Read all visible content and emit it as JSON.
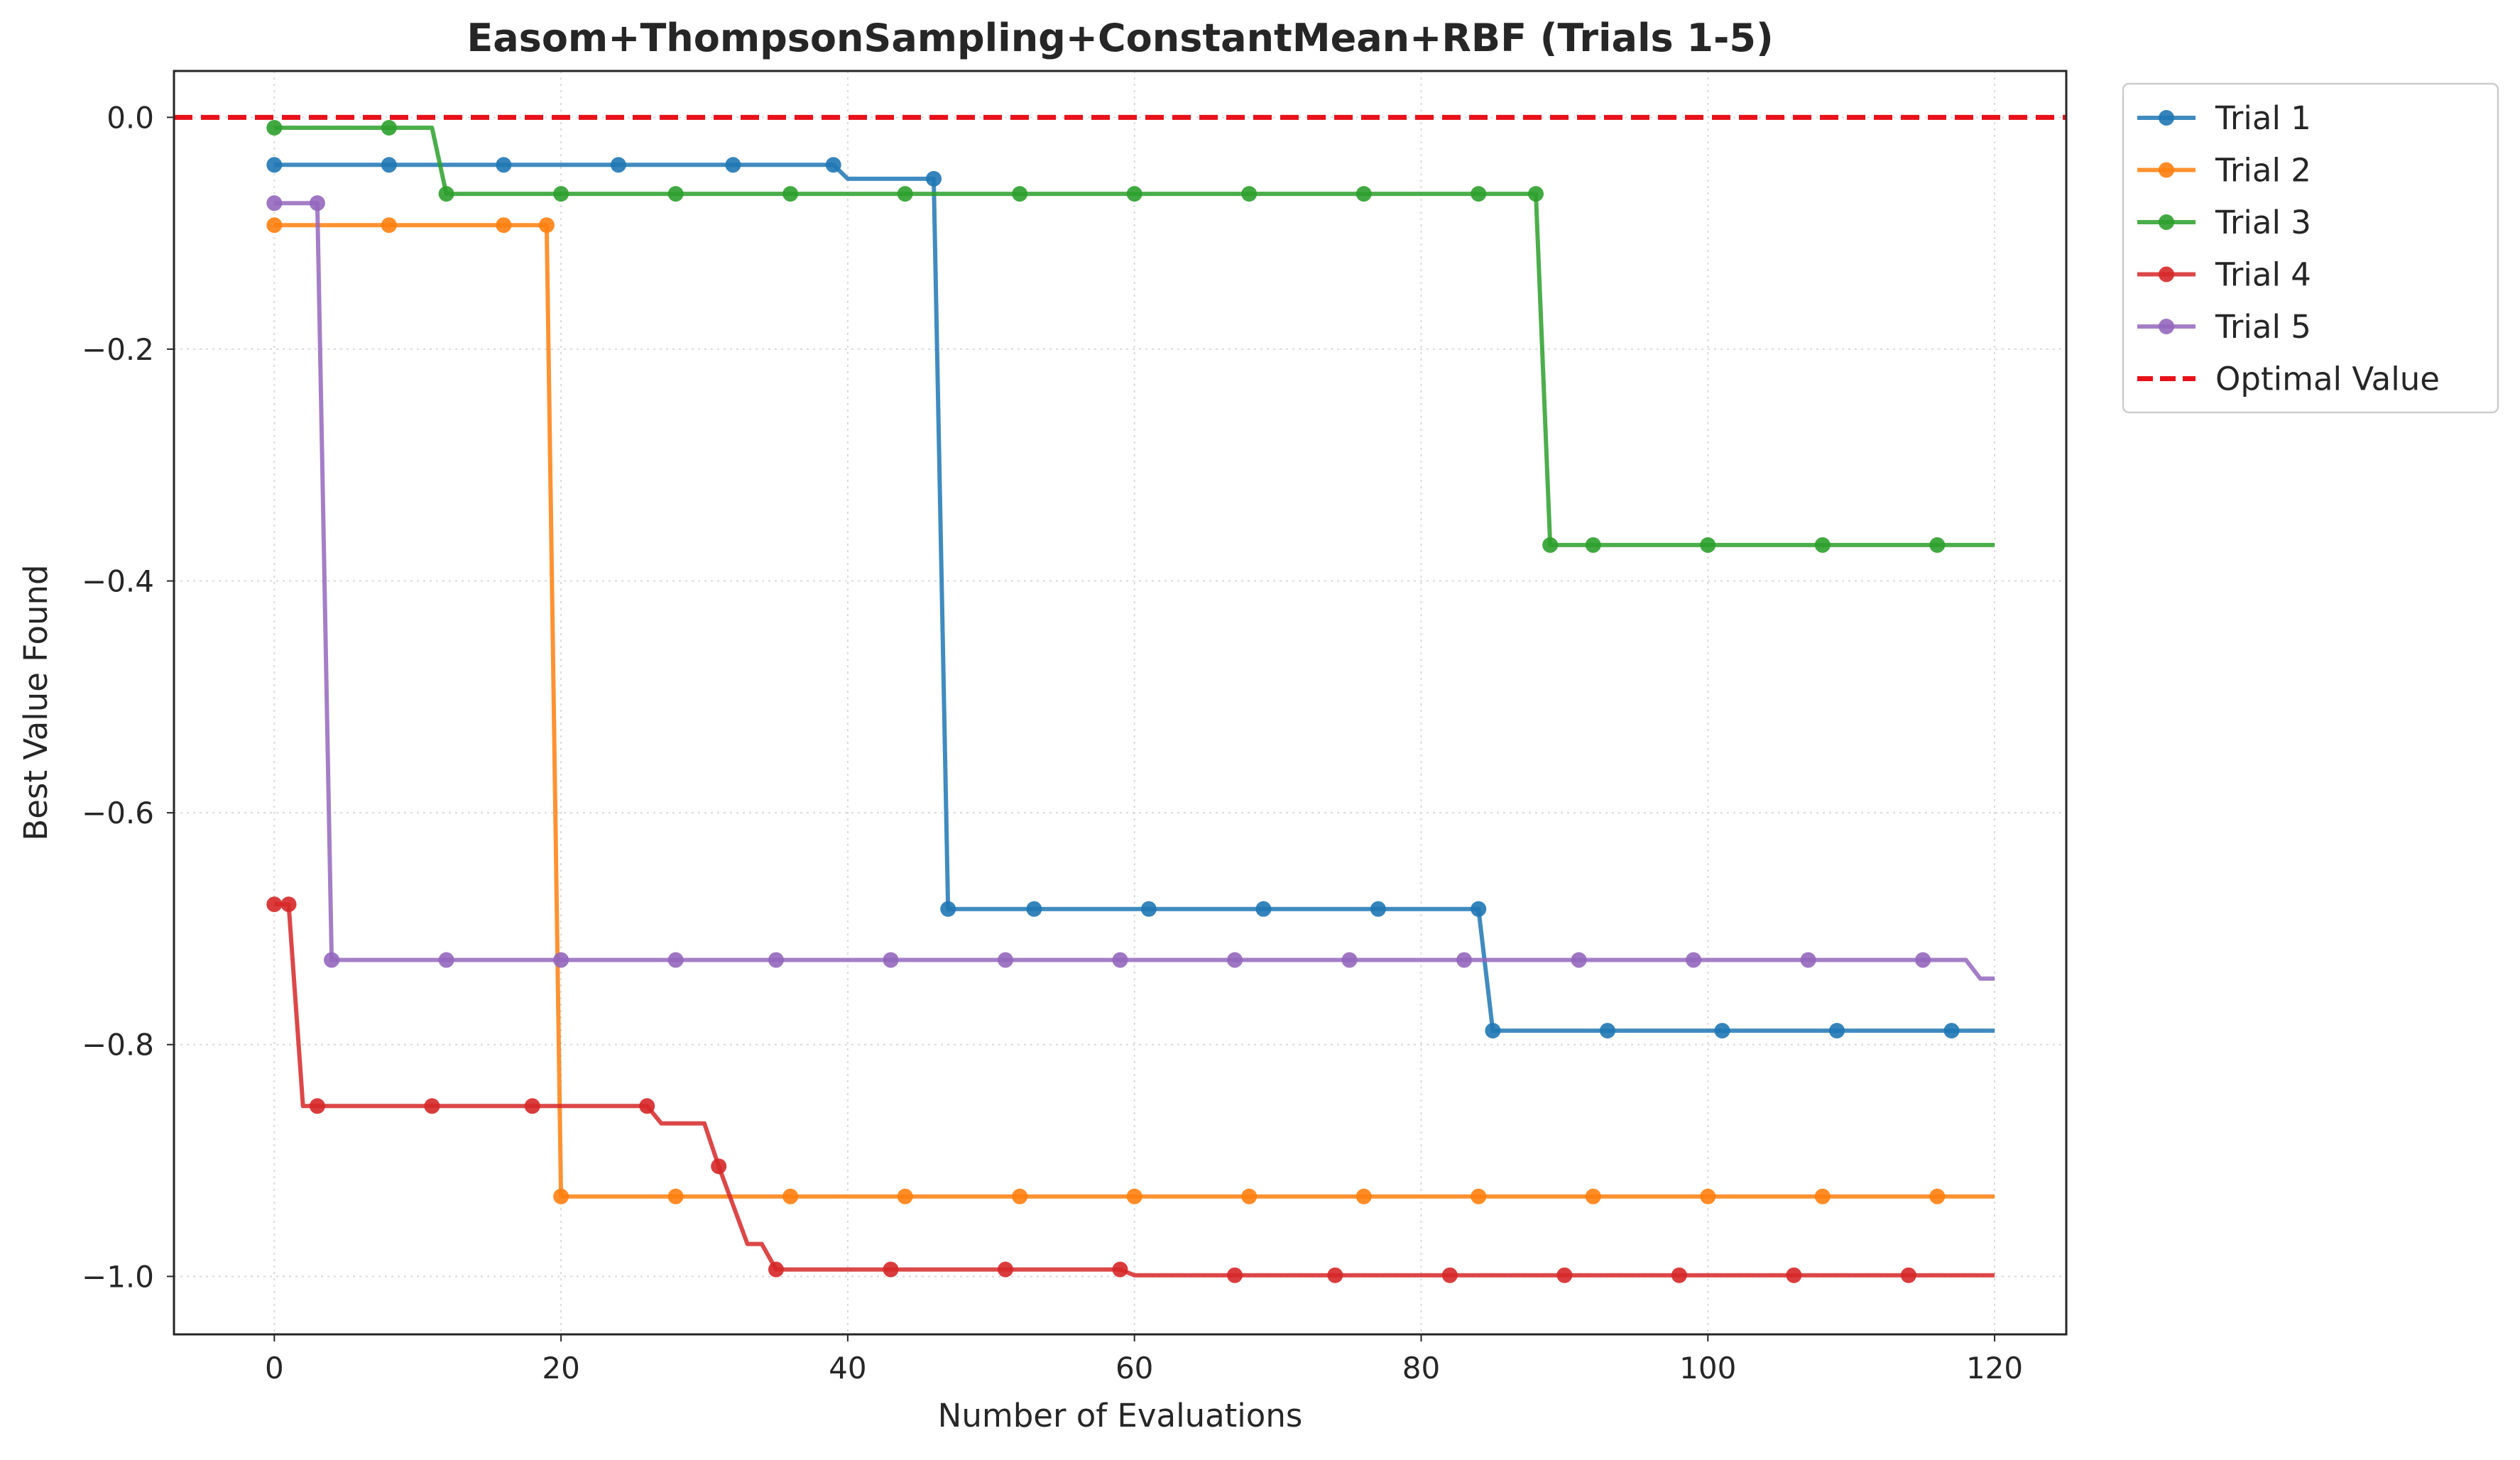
{
  "chart_data": {
    "type": "line",
    "title": "Easom+ThompsonSampling+ConstantMean+RBF (Trials 1-5)",
    "xlabel": "Number of Evaluations",
    "ylabel": "Best Value Found",
    "xlim": [
      -7,
      125
    ],
    "ylim": [
      -1.05,
      0.04
    ],
    "x_ticks": [
      0,
      20,
      40,
      60,
      80,
      100,
      120
    ],
    "y_ticks": [
      0.0,
      -0.2,
      -0.4,
      -0.6,
      -0.8,
      -1.0
    ],
    "x_tick_labels": [
      "0",
      "20",
      "40",
      "60",
      "80",
      "100",
      "120"
    ],
    "y_tick_labels": [
      "0.0",
      "−0.2",
      "−0.4",
      "−0.6",
      "−0.8",
      "−1.0"
    ],
    "grid": true,
    "legend_position": "outside-right-top",
    "reference_line": {
      "name": "Optimal Value",
      "y": 0.0,
      "color": "#e8111a",
      "style": "dashed"
    },
    "series": [
      {
        "name": "Trial 1",
        "color": "#1f77b4",
        "points": [
          [
            0,
            -0.041
          ],
          [
            39,
            -0.041
          ],
          [
            40,
            -0.053
          ],
          [
            46,
            -0.053
          ],
          [
            47,
            -0.683
          ],
          [
            84,
            -0.683
          ],
          [
            85,
            -0.788
          ],
          [
            120,
            -0.788
          ]
        ],
        "markers": [
          0,
          8,
          16,
          24,
          32,
          39,
          46,
          47,
          53,
          61,
          69,
          77,
          84,
          85,
          93,
          101,
          109,
          117
        ]
      },
      {
        "name": "Trial 2",
        "color": "#ff7f0e",
        "points": [
          [
            0,
            -0.093
          ],
          [
            19,
            -0.093
          ],
          [
            20,
            -0.931
          ],
          [
            120,
            -0.931
          ]
        ],
        "markers": [
          0,
          8,
          16,
          19,
          20,
          28,
          36,
          44,
          52,
          60,
          68,
          76,
          84,
          92,
          100,
          108,
          116
        ]
      },
      {
        "name": "Trial 3",
        "color": "#2ca02c",
        "points": [
          [
            0,
            -0.009
          ],
          [
            11,
            -0.009
          ],
          [
            12,
            -0.066
          ],
          [
            88,
            -0.066
          ],
          [
            89,
            -0.369
          ],
          [
            120,
            -0.369
          ]
        ],
        "markers": [
          0,
          8,
          12,
          20,
          28,
          36,
          44,
          52,
          60,
          68,
          76,
          84,
          88,
          89,
          92,
          100,
          108,
          116
        ]
      },
      {
        "name": "Trial 4",
        "color": "#d62728",
        "points": [
          [
            0,
            -0.679
          ],
          [
            1,
            -0.679
          ],
          [
            2,
            -0.853
          ],
          [
            26,
            -0.853
          ],
          [
            27,
            -0.868
          ],
          [
            30,
            -0.868
          ],
          [
            31,
            -0.905
          ],
          [
            33,
            -0.972
          ],
          [
            34,
            -0.972
          ],
          [
            35,
            -0.994
          ],
          [
            59,
            -0.994
          ],
          [
            60,
            -0.999
          ],
          [
            120,
            -0.999
          ]
        ],
        "markers": [
          0,
          1,
          3,
          11,
          18,
          26,
          31,
          35,
          43,
          51,
          59,
          67,
          74,
          82,
          90,
          98,
          106,
          114
        ]
      },
      {
        "name": "Trial 5",
        "color": "#9467bd",
        "points": [
          [
            0,
            -0.074
          ],
          [
            3,
            -0.074
          ],
          [
            4,
            -0.727
          ],
          [
            118,
            -0.727
          ],
          [
            119,
            -0.743
          ],
          [
            120,
            -0.743
          ]
        ],
        "markers": [
          0,
          3,
          4,
          12,
          20,
          28,
          35,
          43,
          51,
          59,
          67,
          75,
          83,
          91,
          99,
          107,
          115
        ]
      }
    ]
  }
}
